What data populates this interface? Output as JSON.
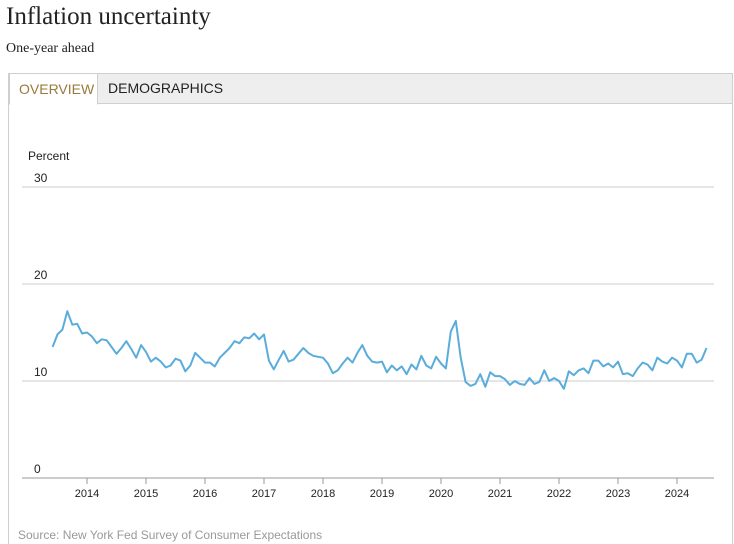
{
  "header": {
    "title": "Inflation uncertainty",
    "subtitle": "One-year ahead"
  },
  "tabs": [
    {
      "label": "OVERVIEW",
      "active": true
    },
    {
      "label": "DEMOGRAPHICS",
      "active": false
    }
  ],
  "source": "Source: New York Fed Survey of Consumer Expectations",
  "colors": {
    "line": "#5aaddb",
    "active_tab": "#9a7a3c",
    "grid": "#cccccc"
  },
  "chart_data": {
    "type": "line",
    "title": "",
    "ylabel": "Percent",
    "xlabel": "",
    "ylim": [
      0,
      30
    ],
    "yticks": [
      0,
      10,
      20,
      30
    ],
    "xticks": [
      "2014",
      "2015",
      "2016",
      "2017",
      "2018",
      "2019",
      "2020",
      "2021",
      "2022",
      "2023",
      "2024"
    ],
    "grid": true,
    "series": [
      {
        "x": [
          "2013-06",
          "2013-07",
          "2013-08",
          "2013-09",
          "2013-10",
          "2013-11",
          "2013-12",
          "2014-01",
          "2014-02",
          "2014-03",
          "2014-04",
          "2014-05",
          "2014-06",
          "2014-07",
          "2014-08",
          "2014-09",
          "2014-10",
          "2014-11",
          "2014-12",
          "2015-01",
          "2015-02",
          "2015-03",
          "2015-04",
          "2015-05",
          "2015-06",
          "2015-07",
          "2015-08",
          "2015-09",
          "2015-10",
          "2015-11",
          "2015-12",
          "2016-01",
          "2016-02",
          "2016-03",
          "2016-04",
          "2016-05",
          "2016-06",
          "2016-07",
          "2016-08",
          "2016-09",
          "2016-10",
          "2016-11",
          "2016-12",
          "2017-01",
          "2017-02",
          "2017-03",
          "2017-04",
          "2017-05",
          "2017-06",
          "2017-07",
          "2017-08",
          "2017-09",
          "2017-10",
          "2017-11",
          "2017-12",
          "2018-01",
          "2018-02",
          "2018-03",
          "2018-04",
          "2018-05",
          "2018-06",
          "2018-07",
          "2018-08",
          "2018-09",
          "2018-10",
          "2018-11",
          "2018-12",
          "2019-01",
          "2019-02",
          "2019-03",
          "2019-04",
          "2019-05",
          "2019-06",
          "2019-07",
          "2019-08",
          "2019-09",
          "2019-10",
          "2019-11",
          "2019-12",
          "2020-01",
          "2020-02",
          "2020-03",
          "2020-04",
          "2020-05",
          "2020-06",
          "2020-07",
          "2020-08",
          "2020-09",
          "2020-10",
          "2020-11",
          "2020-12",
          "2021-01",
          "2021-02",
          "2021-03",
          "2021-04",
          "2021-05",
          "2021-06",
          "2021-07",
          "2021-08",
          "2021-09",
          "2021-10",
          "2021-11",
          "2021-12",
          "2022-01",
          "2022-02",
          "2022-03",
          "2022-04",
          "2022-05",
          "2022-06",
          "2022-07",
          "2022-08",
          "2022-09",
          "2022-10",
          "2022-11",
          "2022-12",
          "2023-01",
          "2023-02",
          "2023-03",
          "2023-04",
          "2023-05",
          "2023-06",
          "2023-07",
          "2023-08",
          "2023-09",
          "2023-10",
          "2023-11",
          "2023-12",
          "2024-01",
          "2024-02",
          "2024-03",
          "2024-04",
          "2024-05",
          "2024-06",
          "2024-07"
        ],
        "values": [
          13.5,
          14.8,
          15.3,
          17.2,
          15.8,
          15.9,
          14.9,
          15.0,
          14.6,
          13.9,
          14.3,
          14.2,
          13.5,
          12.8,
          13.4,
          14.1,
          13.3,
          12.4,
          13.7,
          13.0,
          12.0,
          12.4,
          12.0,
          11.4,
          11.6,
          12.3,
          12.1,
          11.0,
          11.6,
          12.9,
          12.4,
          11.9,
          11.9,
          11.5,
          12.4,
          12.9,
          13.4,
          14.1,
          13.9,
          14.5,
          14.4,
          14.9,
          14.3,
          14.8,
          12.1,
          11.2,
          12.2,
          13.1,
          12.0,
          12.2,
          12.8,
          13.4,
          12.9,
          12.6,
          12.5,
          12.4,
          11.8,
          10.8,
          11.1,
          11.8,
          12.4,
          11.9,
          12.9,
          13.7,
          12.6,
          12.0,
          11.9,
          12.0,
          10.9,
          11.6,
          11.1,
          11.5,
          10.7,
          11.7,
          11.2,
          12.6,
          11.6,
          11.3,
          12.5,
          11.8,
          11.3,
          15.1,
          16.2,
          12.4,
          9.9,
          9.5,
          9.7,
          10.7,
          9.4,
          10.9,
          10.5,
          10.5,
          10.2,
          9.6,
          10.0,
          9.7,
          9.6,
          10.3,
          9.7,
          9.9,
          11.1,
          10.0,
          10.3,
          10.0,
          9.2,
          11.0,
          10.6,
          11.1,
          11.3,
          10.8,
          12.1,
          12.1,
          11.5,
          11.8,
          11.4,
          12.0,
          10.7,
          10.8,
          10.5,
          11.3,
          11.9,
          11.7,
          11.1,
          12.4,
          12.0,
          11.8,
          12.4,
          12.1,
          11.4,
          12.8,
          12.8,
          11.9,
          12.2,
          13.4
        ]
      }
    ]
  }
}
